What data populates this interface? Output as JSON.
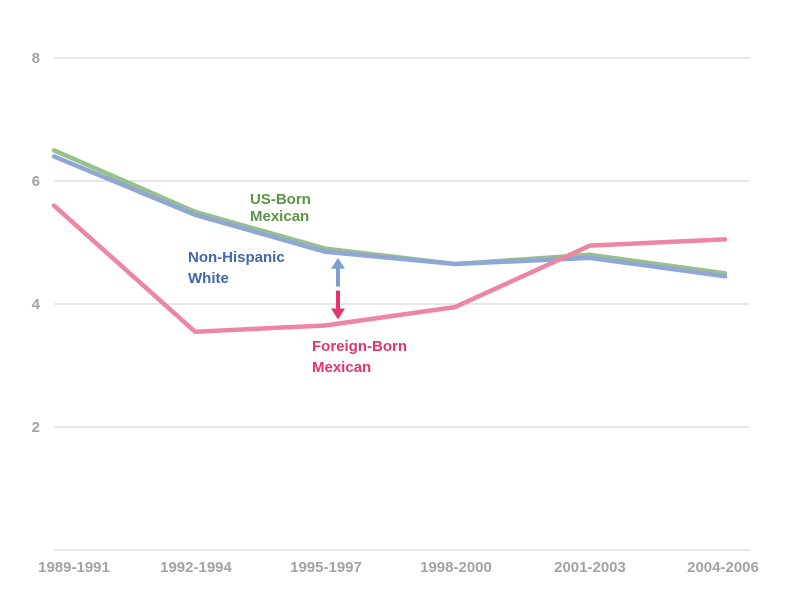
{
  "chart_data": {
    "type": "line",
    "title": "",
    "xlabel": "",
    "ylabel": "",
    "categories": [
      "1989-1991",
      "1992-1994",
      "1995-1997",
      "1998-2000",
      "2001-2003",
      "2004-2006"
    ],
    "yticks": [
      2,
      4,
      6,
      8
    ],
    "ylim": [
      0,
      8
    ],
    "grid": true,
    "series": [
      {
        "name": "US-Born Mexican",
        "name_lines": [
          "US-Born",
          "Mexican"
        ],
        "color": "#98c08c",
        "label_color": "#5a9446",
        "values": [
          6.5,
          5.5,
          4.9,
          4.65,
          4.8,
          4.5
        ]
      },
      {
        "name": "Non-Hispanic White",
        "name_lines": [
          "Non-Hispanic",
          "White"
        ],
        "color": "#8fa7d5",
        "label_color": "#4066ad",
        "values": [
          6.4,
          5.45,
          4.85,
          4.65,
          4.75,
          4.45
        ]
      },
      {
        "name": "Foreign-Born Mexican",
        "name_lines": [
          "Foreign-Born",
          "Mexican"
        ],
        "color": "#ec86a2",
        "label_color": "#e5346c",
        "values": [
          5.6,
          3.55,
          3.65,
          3.95,
          4.95,
          5.05
        ]
      }
    ],
    "annotations": [
      {
        "type": "gap-arrow",
        "category": "1995-1997",
        "from": 4.85,
        "to": 3.65,
        "colors": [
          "#7f9fd3",
          "#e5346c"
        ]
      }
    ]
  }
}
